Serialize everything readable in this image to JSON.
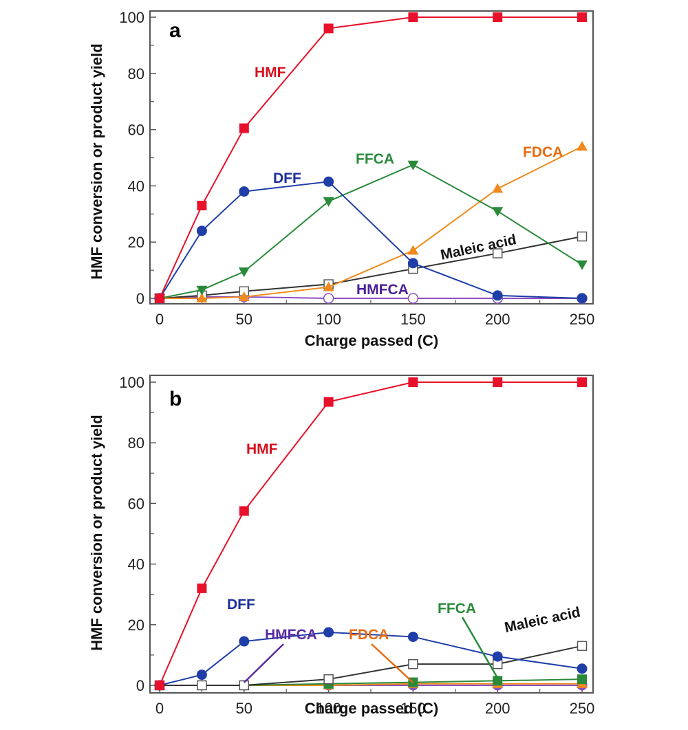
{
  "chart_data": [
    {
      "type": "line",
      "panel": "a",
      "title": "",
      "xlabel": "Charge passed (C)",
      "ylabel": "HMF conversion or product yield",
      "xlim": [
        0,
        250
      ],
      "ylim": [
        0,
        100
      ],
      "xticks": [
        0,
        50,
        100,
        150,
        200,
        250
      ],
      "yticks": [
        0,
        20,
        40,
        60,
        80,
        100
      ],
      "grid": false,
      "x": [
        0,
        25,
        50,
        100,
        150,
        200,
        250
      ],
      "series": [
        {
          "name": "HMF",
          "color": "#e8102a",
          "marker": "square-filled",
          "values": [
            0,
            33,
            60.5,
            96,
            100,
            100,
            100
          ]
        },
        {
          "name": "DFF",
          "color": "#1f3ea8",
          "marker": "circle-filled",
          "values": [
            0,
            24,
            38,
            41.5,
            12.5,
            1,
            0
          ]
        },
        {
          "name": "FFCA",
          "color": "#2a8a3a",
          "marker": "triangle-down-filled",
          "values": [
            0,
            3,
            9.5,
            34.5,
            47.5,
            31,
            12
          ]
        },
        {
          "name": "FDCA",
          "color": "#f08a1c",
          "marker": "triangle-up-filled",
          "values": [
            0,
            0,
            0.5,
            4,
            17,
            39,
            54
          ]
        },
        {
          "name": "Maleic acid",
          "color": "#333333",
          "marker": "square-open",
          "values": [
            0,
            1,
            2.5,
            5,
            10.5,
            16,
            22
          ]
        },
        {
          "name": "HMFCA",
          "color": "#8a4fc0",
          "marker": "circle-open",
          "values": [
            0,
            0.5,
            0.5,
            0,
            0,
            0,
            0
          ]
        }
      ],
      "annotations": [
        {
          "text": "a",
          "role": "panel-letter"
        },
        {
          "text": "HMF",
          "color": "#d8101e"
        },
        {
          "text": "DFF",
          "color": "#1f2f9a"
        },
        {
          "text": "FFCA",
          "color": "#2a8a3a"
        },
        {
          "text": "FDCA",
          "color": "#e86a10"
        },
        {
          "text": "Maleic acid",
          "color": "#111111"
        },
        {
          "text": "HMFCA",
          "color": "#4a1f9a"
        }
      ]
    },
    {
      "type": "line",
      "panel": "b",
      "title": "",
      "xlabel": "Charge passed (C)",
      "ylabel": "HMF conversion or product yield",
      "xlim": [
        0,
        250
      ],
      "ylim": [
        0,
        100
      ],
      "xticks": [
        0,
        50,
        100,
        150,
        200,
        250
      ],
      "yticks": [
        0,
        20,
        40,
        60,
        80,
        100
      ],
      "grid": false,
      "x": [
        0,
        25,
        50,
        100,
        150,
        200,
        250
      ],
      "series": [
        {
          "name": "HMF",
          "color": "#e8102a",
          "marker": "square-filled",
          "values": [
            0,
            32,
            57.5,
            93.5,
            100,
            100,
            100
          ]
        },
        {
          "name": "DFF",
          "color": "#1f3ea8",
          "marker": "circle-filled",
          "values": [
            0,
            3.5,
            14.5,
            17.5,
            16,
            9.5,
            5.5
          ]
        },
        {
          "name": "Maleic acid",
          "color": "#333333",
          "marker": "square-open",
          "values": [
            0,
            0,
            0,
            2,
            7,
            7,
            13
          ]
        },
        {
          "name": "FFCA",
          "color": "#2a8a3a",
          "marker": "square-filled",
          "values": [
            0,
            0,
            0,
            0.5,
            1,
            1.5,
            2
          ]
        },
        {
          "name": "FDCA",
          "color": "#f08a1c",
          "marker": "triangle-up-filled",
          "values": [
            0,
            0,
            0,
            0,
            0.5,
            0.5,
            0.5
          ]
        },
        {
          "name": "HMFCA",
          "color": "#8a4fc0",
          "marker": "circle-filled",
          "values": [
            0,
            0,
            0,
            0,
            0,
            0,
            0
          ]
        }
      ],
      "annotations": [
        {
          "text": "b",
          "role": "panel-letter"
        },
        {
          "text": "HMF",
          "color": "#d8101e"
        },
        {
          "text": "DFF",
          "color": "#1f2f9a"
        },
        {
          "text": "HMFCA",
          "color": "#5a2aa0",
          "pointer_to": {
            "x": 50,
            "y": 0
          }
        },
        {
          "text": "FDCA",
          "color": "#e86a10",
          "pointer_to": {
            "x": 150,
            "y": 0
          }
        },
        {
          "text": "FFCA",
          "color": "#2a8a3a",
          "pointer_to": {
            "x": 200,
            "y": 1.5
          }
        },
        {
          "text": "Maleic acid",
          "color": "#111111"
        }
      ]
    }
  ]
}
